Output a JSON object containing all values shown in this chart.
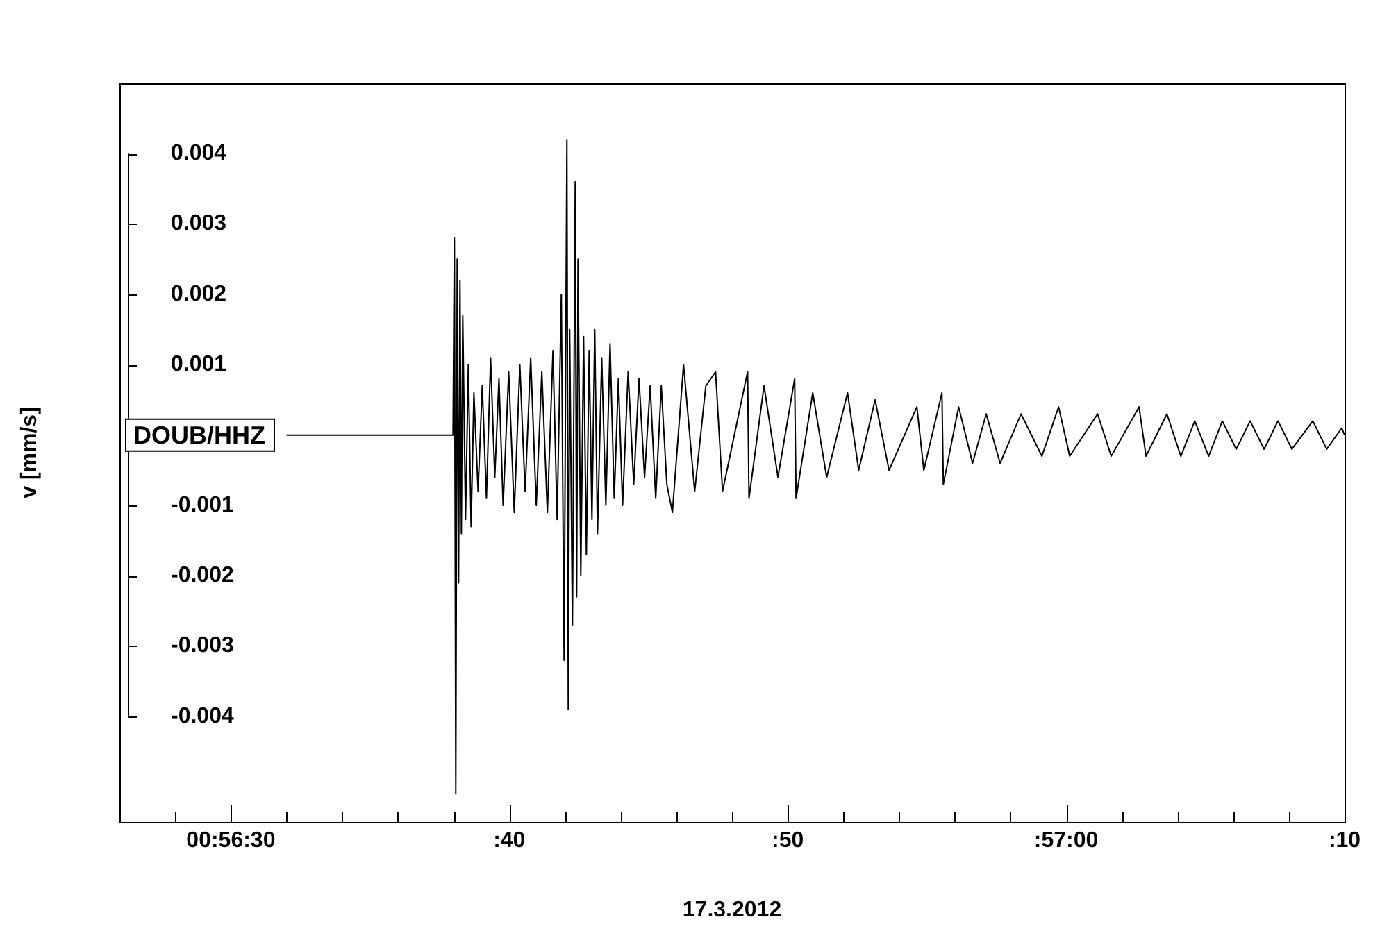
{
  "chart_data": {
    "type": "line",
    "xlabel": "17.3.2012",
    "ylabel": "v [mm/s]",
    "annotations": [
      "DOUB/HHZ"
    ],
    "xlim": [
      "2012-03-17T00:56:26",
      "2012-03-17T00:57:10"
    ],
    "ylim": [
      -0.0055,
      0.005
    ],
    "xticks": [
      {
        "value": "2012-03-17T00:56:28",
        "label": null
      },
      {
        "value": "2012-03-17T00:56:30",
        "label": "00:56:30"
      },
      {
        "value": "2012-03-17T00:56:32",
        "label": null
      },
      {
        "value": "2012-03-17T00:56:34",
        "label": null
      },
      {
        "value": "2012-03-17T00:56:36",
        "label": null
      },
      {
        "value": "2012-03-17T00:56:38",
        "label": null
      },
      {
        "value": "2012-03-17T00:56:40",
        "label": ":40"
      },
      {
        "value": "2012-03-17T00:56:42",
        "label": null
      },
      {
        "value": "2012-03-17T00:56:44",
        "label": null
      },
      {
        "value": "2012-03-17T00:56:46",
        "label": null
      },
      {
        "value": "2012-03-17T00:56:48",
        "label": null
      },
      {
        "value": "2012-03-17T00:56:50",
        "label": ":50"
      },
      {
        "value": "2012-03-17T00:56:52",
        "label": null
      },
      {
        "value": "2012-03-17T00:56:54",
        "label": null
      },
      {
        "value": "2012-03-17T00:56:56",
        "label": null
      },
      {
        "value": "2012-03-17T00:56:58",
        "label": null
      },
      {
        "value": "2012-03-17T00:57:00",
        "label": ":57:00"
      },
      {
        "value": "2012-03-17T00:57:02",
        "label": null
      },
      {
        "value": "2012-03-17T00:57:04",
        "label": null
      },
      {
        "value": "2012-03-17T00:57:06",
        "label": null
      },
      {
        "value": "2012-03-17T00:57:08",
        "label": null
      },
      {
        "value": "2012-03-17T00:57:10",
        "label": ":10"
      }
    ],
    "yticks": [
      -0.004,
      -0.003,
      -0.002,
      -0.001,
      {
        "value": 0,
        "label": null
      },
      0.001,
      0.002,
      0.003,
      0.004
    ],
    "grid": false,
    "legend": false,
    "marker": "none",
    "line_style": "solid",
    "series": [
      {
        "color": "#000000",
        "x": [
          "2012-03-17T00:56:32",
          "2012-03-17T00:56:34.19",
          "2012-03-17T00:56:36.68",
          "2012-03-17T00:56:37.98",
          "2012-03-17T00:56:38.03",
          "2012-03-17T00:56:38.08",
          "2012-03-17T00:56:38.13",
          "2012-03-17T00:56:38.18",
          "2012-03-17T00:56:38.23",
          "2012-03-17T00:56:38.28",
          "2012-03-17T00:56:38.33",
          "2012-03-17T00:56:38.43",
          "2012-03-17T00:56:38.53",
          "2012-03-17T00:56:38.63",
          "2012-03-17T00:56:38.73",
          "2012-03-17T00:56:38.88",
          "2012-03-17T00:56:39.03",
          "2012-03-17T00:56:39.18",
          "2012-03-17T00:56:39.33",
          "2012-03-17T00:56:39.48",
          "2012-03-17T00:56:39.63",
          "2012-03-17T00:56:39.78",
          "2012-03-17T00:56:39.98",
          "2012-03-17T00:56:40.18",
          "2012-03-17T00:56:40.38",
          "2012-03-17T00:56:40.57",
          "2012-03-17T00:56:40.77",
          "2012-03-17T00:56:40.97",
          "2012-03-17T00:56:41.17",
          "2012-03-17T00:56:41.37",
          "2012-03-17T00:56:41.57",
          "2012-03-17T00:56:41.72",
          "2012-03-17T00:56:41.87",
          "2012-03-17T00:56:41.97",
          "2012-03-17T00:56:42.07",
          "2012-03-17T00:56:42.12",
          "2012-03-17T00:56:42.17",
          "2012-03-17T00:56:42.27",
          "2012-03-17T00:56:42.37",
          "2012-03-17T00:56:42.42",
          "2012-03-17T00:56:42.47",
          "2012-03-17T00:56:42.57",
          "2012-03-17T00:56:42.67",
          "2012-03-17T00:56:42.77",
          "2012-03-17T00:56:42.87",
          "2012-03-17T00:56:42.97",
          "2012-03-17T00:56:43.07",
          "2012-03-17T00:56:43.17",
          "2012-03-17T00:56:43.32",
          "2012-03-17T00:56:43.47",
          "2012-03-17T00:56:43.62",
          "2012-03-17T00:56:43.77",
          "2012-03-17T00:56:43.92",
          "2012-03-17T00:56:44.07",
          "2012-03-17T00:56:44.27",
          "2012-03-17T00:56:44.47",
          "2012-03-17T00:56:44.66",
          "2012-03-17T00:56:44.86",
          "2012-03-17T00:56:45.06",
          "2012-03-17T00:56:45.26",
          "2012-03-17T00:56:45.46",
          "2012-03-17T00:56:45.66",
          "2012-03-17T00:56:45.86",
          "2012-03-17T00:56:46.26",
          "2012-03-17T00:56:46.66",
          "2012-03-17T00:56:47.06",
          "2012-03-17T00:56:47.41",
          "2012-03-17T00:56:47.66",
          "2012-03-17T00:56:48.56",
          "2012-03-17T00:56:48.61",
          "2012-03-17T00:56:49.15",
          "2012-03-17T00:56:49.65",
          "2012-03-17T00:56:50.25",
          "2012-03-17T00:56:50.30",
          "2012-03-17T00:56:50.90",
          "2012-03-17T00:56:51.40",
          "2012-03-17T00:56:52.15",
          "2012-03-17T00:56:52.55",
          "2012-03-17T00:56:53.14",
          "2012-03-17T00:56:53.64",
          "2012-03-17T00:56:54.64",
          "2012-03-17T00:56:54.89",
          "2012-03-17T00:56:55.54",
          "2012-03-17T00:56:55.59",
          "2012-03-17T00:56:56.14",
          "2012-03-17T00:56:56.64",
          "2012-03-17T00:56:57.13",
          "2012-03-17T00:56:57.63",
          "2012-03-17T00:56:58.38",
          "2012-03-17T00:56:59.13",
          "2012-03-17T00:56:59.73",
          "2012-03-17T00:57:00.13",
          "2012-03-17T00:57:01.13",
          "2012-03-17T00:57:01.62",
          "2012-03-17T00:57:02.62",
          "2012-03-17T00:57:02.87",
          "2012-03-17T00:57:03.62",
          "2012-03-17T00:57:04.12",
          "2012-03-17T00:57:04.62",
          "2012-03-17T00:57:05.12",
          "2012-03-17T00:57:05.61",
          "2012-03-17T00:57:06.11",
          "2012-03-17T00:57:06.61",
          "2012-03-17T00:57:07.11",
          "2012-03-17T00:57:07.61",
          "2012-03-17T00:57:08.11",
          "2012-03-17T00:57:08.86",
          "2012-03-17T00:57:09.36",
          "2012-03-17T00:57:09.90",
          "2012-03-17T00:57:10"
        ],
        "values": [
          0,
          0,
          0,
          0,
          0.0028,
          -0.0051,
          0.0025,
          -0.0021,
          0.0022,
          -0.0014,
          0.0017,
          -0.0012,
          0.001,
          -0.0013,
          0.0006,
          -0.0008,
          0.0007,
          -0.0009,
          0.0011,
          -0.0006,
          0.0008,
          -0.001,
          0.0009,
          -0.0011,
          0.001,
          -0.0008,
          0.0011,
          -0.001,
          0.0009,
          -0.0011,
          0.0012,
          -0.0012,
          0.002,
          -0.0032,
          0.0042,
          -0.0039,
          0.0015,
          -0.0027,
          0.0036,
          -0.0023,
          0.0025,
          -0.002,
          0.0014,
          -0.0017,
          0.0012,
          -0.0012,
          0.0015,
          -0.0014,
          0.0011,
          -0.001,
          0.0013,
          -0.0009,
          0.0008,
          -0.001,
          0.0009,
          -0.0007,
          0.0008,
          -0.0006,
          0.0007,
          -0.0009,
          0.0007,
          -0.0007,
          -0.0011,
          0.001,
          -0.0008,
          0.0007,
          0.0009,
          -0.0008,
          0.0009,
          -0.0009,
          0.0007,
          -0.0006,
          0.0008,
          -0.0009,
          0.0006,
          -0.0006,
          0.0006,
          -0.0005,
          0.0005,
          -0.0005,
          0.0004,
          -0.0005,
          0.0006,
          -0.0007,
          0.0004,
          -0.0004,
          0.0003,
          -0.0004,
          0.0003,
          -0.0003,
          0.0004,
          -0.0003,
          0.0003,
          -0.0003,
          0.0004,
          -0.0003,
          0.0003,
          -0.0003,
          0.0002,
          -0.0003,
          0.0002,
          -0.0002,
          0.0002,
          -0.0002,
          0.0002,
          -0.0002,
          0.0002,
          -0.0002,
          0.0001,
          0
        ]
      }
    ]
  }
}
